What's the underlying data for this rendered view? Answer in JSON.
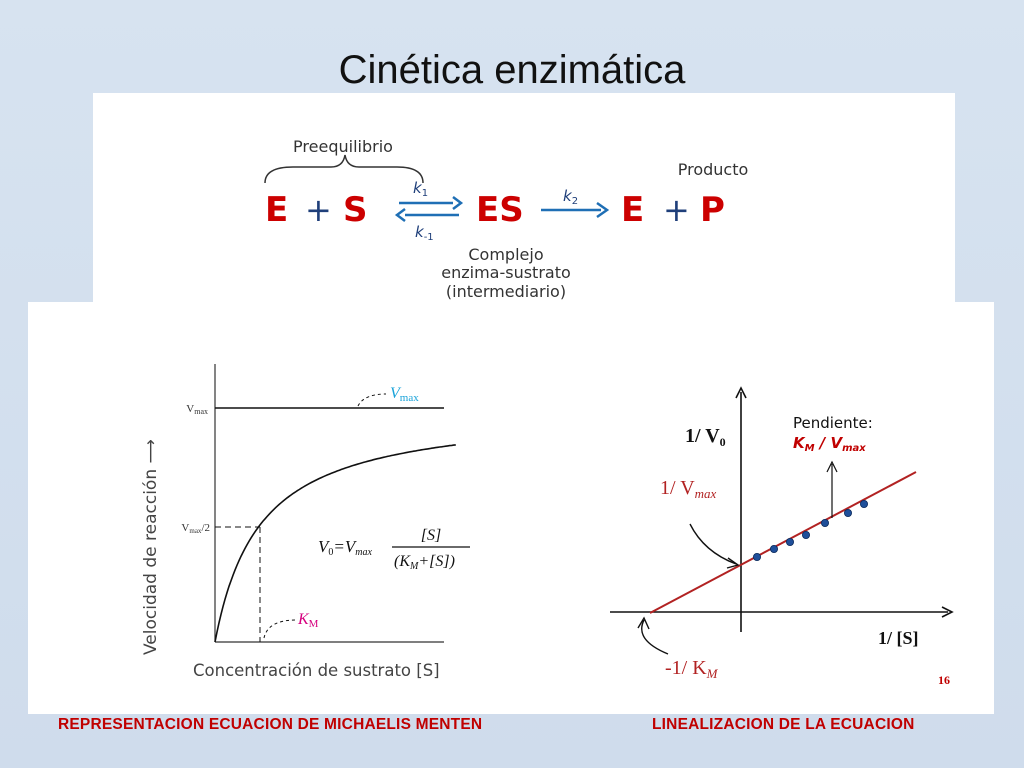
{
  "slide": {
    "title": "Cinética enzimática"
  },
  "scheme": {
    "preequilibrium_label": "Preequilibrio",
    "product_label": "Producto",
    "E": "E",
    "plus1": "+",
    "S": "S",
    "k1": "k",
    "k1_sub": "1",
    "k_minus1": "k",
    "k_minus1_sub": "-1",
    "ES": "ES",
    "k2": "k",
    "k2_sub": "2",
    "E2": "E",
    "plus2": "+",
    "P": "P",
    "complex_line1": "Complejo",
    "complex_line2": "enzima-sustrato",
    "complex_line3": "(intermediario)"
  },
  "mm_plot": {
    "y_axis_label": "Velocidad de reacción ⟶",
    "x_axis_label": "Concentración de sustrato [S]",
    "vmax_tick": "V",
    "vmax_tick_sub": "max",
    "half_vmax_tick": "V",
    "half_vmax_tick_sub": "max",
    "half_vmax_tick_suffix": "/2",
    "vmax_callout": "V",
    "vmax_callout_sub": "max",
    "km_label": "K",
    "km_label_sub": "M",
    "equation_lhs": "V",
    "equation_lhs_sub": "0",
    "equation_eq": "=V",
    "equation_eq_sub": "max",
    "equation_num": "[S]",
    "equation_den": "(K",
    "equation_den_sub": "M",
    "equation_den_rest": "+[S])",
    "colors": {
      "vmax_callout": "#1aa3d9",
      "km_label": "#d6007f"
    }
  },
  "lb_plot": {
    "y_axis_label": "1/ V",
    "y_axis_label_sub": "0",
    "x_axis_label": "1/ [S]",
    "intercept_y_label": "1/ V",
    "intercept_y_label_sub": "max",
    "intercept_x_label": "-1/ K",
    "intercept_x_label_sub": "M",
    "slope_title": "Pendiente:",
    "slope_formula_a": "K",
    "slope_formula_a_sub": "M",
    "slope_formula_mid": " / ",
    "slope_formula_b": "V",
    "slope_formula_b_sub": "max",
    "page_number": "16",
    "colors": {
      "line": "#b22222",
      "points": "#1f4f9a",
      "slope_formula": "#c00000",
      "intercept_labels": "#b22222"
    }
  },
  "chart_data": [
    {
      "type": "line",
      "title": "",
      "xlabel": "Concentración de sustrato [S]",
      "ylabel": "Velocidad de reacción",
      "series": [
        {
          "name": "V0=Vmax[S]/(KM+[S])",
          "x": [
            0,
            1,
            2,
            3,
            4,
            5,
            6,
            8,
            10
          ],
          "values": [
            0,
            0.5,
            0.667,
            0.75,
            0.8,
            0.833,
            0.857,
            0.889,
            0.909
          ]
        }
      ],
      "annotations": [
        "Vmax",
        "Vmax/2",
        "KM"
      ],
      "grid": false
    },
    {
      "type": "scatter",
      "title": "",
      "xlabel": "1/ [S]",
      "ylabel": "1/ V0",
      "series": [
        {
          "x": [
            0.5,
            1.0,
            1.5,
            2.0,
            2.7,
            3.5,
            4.0
          ],
          "values": [
            1.5,
            2.0,
            2.5,
            3.0,
            3.7,
            4.5,
            5.0
          ]
        }
      ],
      "fit_line": {
        "slope": "KM / Vmax",
        "y_intercept": "1/ Vmax",
        "x_intercept": "-1/ KM"
      },
      "grid": false
    }
  ]
}
